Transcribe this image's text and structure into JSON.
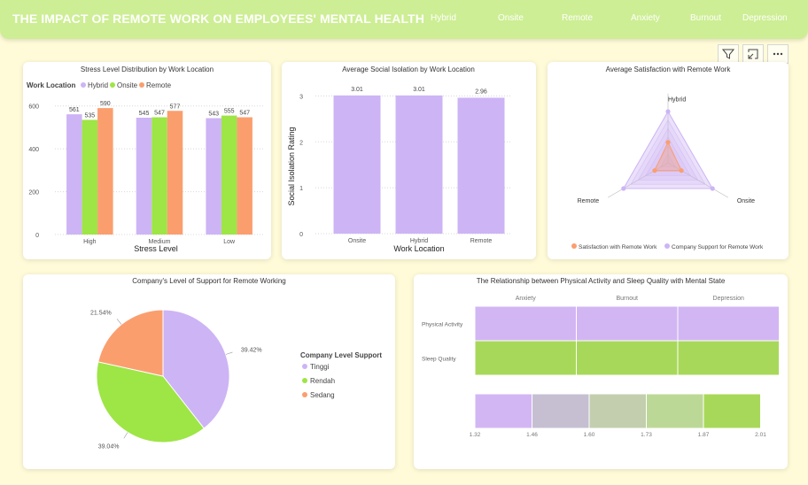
{
  "header": {
    "title": "THE IMPACT OF REMOTE WORK ON EMPLOYEES' MENTAL HEALTH",
    "nav": [
      "Hybrid",
      "Onsite",
      "Remote",
      "Anxiety",
      "Burnout",
      "Depression"
    ]
  },
  "toolbar": {
    "icons": [
      "filter-icon",
      "focus-mode-icon",
      "more-options-icon"
    ]
  },
  "colors": {
    "hybrid": "#cdb4f5",
    "onsite": "#9ee546",
    "remote": "#fb9e6e",
    "satisfaction": "#fb9e6e",
    "support": "#cdb4f5",
    "physical": "#d2b6f3",
    "sleep": "#a8d85a"
  },
  "chart_data": [
    {
      "type": "bar",
      "title": "Stress Level Distribution by Work Location",
      "xlabel": "Stress Level",
      "ylabel": "",
      "legend_title": "Work Location",
      "categories": [
        "High",
        "Medium",
        "Low"
      ],
      "series": [
        {
          "name": "Hybrid",
          "values": [
            561,
            545,
            543
          ]
        },
        {
          "name": "Onsite",
          "values": [
            535,
            547,
            555
          ]
        },
        {
          "name": "Remote",
          "values": [
            590,
            577,
            547
          ]
        }
      ],
      "yticks": [
        "0",
        "200",
        "400",
        "600"
      ],
      "ylim": [
        0,
        640
      ],
      "grid": true
    },
    {
      "type": "bar",
      "title": "Average Social Isolation by Work Location",
      "xlabel": "Work Location",
      "ylabel": "Social Isolation Rating",
      "categories": [
        "Onsite",
        "Hybrid",
        "Remote"
      ],
      "values": [
        3.01,
        3.01,
        2.96
      ],
      "labels": [
        "3.01",
        "3.01",
        "2.96"
      ],
      "yticks": [
        "0",
        "1",
        "2",
        "3"
      ],
      "ylim": [
        0,
        3.2
      ]
    },
    {
      "type": "radar",
      "title": "Average Satisfaction with Remote Work",
      "axes": [
        "Hybrid",
        "Onsite",
        "Remote"
      ],
      "series": [
        {
          "name": "Satisfaction with Remote Work",
          "values": [
            0.4,
            0.3,
            0.3
          ]
        },
        {
          "name": "Company Support for Remote Work",
          "values": [
            1.0,
            1.0,
            1.0
          ]
        }
      ]
    },
    {
      "type": "pie",
      "title": "Company's Level of Support for Remote Working",
      "legend_title": "Company Level Support",
      "slices": [
        {
          "label": "Tinggi",
          "value": 39.42,
          "display": "39.42%"
        },
        {
          "label": "Rendah",
          "value": 39.04,
          "display": "39.04%"
        },
        {
          "label": "Sedang",
          "value": 21.54,
          "display": "21.54%"
        }
      ]
    },
    {
      "type": "heatmap",
      "title": "The Relationship between Physical Activity and Sleep Quality with Mental State",
      "columns": [
        "Anxiety",
        "Burnout",
        "Depression"
      ],
      "rows": [
        "Physical Activity",
        "Sleep Quality"
      ],
      "gradient_stops": [
        "#d2b6f3",
        "#c6bfd2",
        "#c3ceaf",
        "#bcd896",
        "#a8d85a"
      ],
      "gradient_ticks": [
        "1.32",
        "1.46",
        "1.60",
        "1.73",
        "1.87",
        "2.01"
      ]
    }
  ]
}
